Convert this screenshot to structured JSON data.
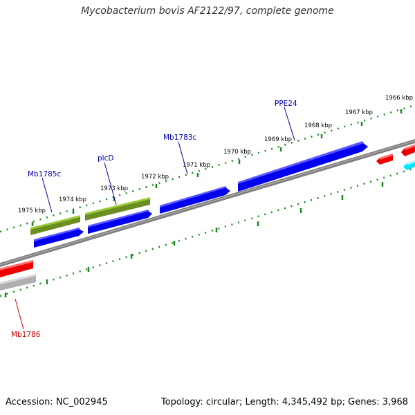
{
  "title": "Mycobacterium bovis AF2122/97, complete genome",
  "footer": {
    "accession": "Accession: NC_002945",
    "summary": "Topology: circular; Length: 4,345,492 bp; Genes: 3,968"
  },
  "kbp_labels": [
    "1966 kbp",
    "1967 kbp",
    "1968 kbp",
    "1969 kbp",
    "1970 kbp",
    "1971 kbp",
    "1972 kbp",
    "1973 kbp",
    "1974 kbp",
    "1975 kbp"
  ],
  "gene_labels": [
    {
      "name": "PPE24",
      "strand": "forward"
    },
    {
      "name": "Mb1783c",
      "strand": "forward"
    },
    {
      "name": "plcD",
      "strand": "forward"
    },
    {
      "name": "Mb1785c",
      "strand": "forward"
    },
    {
      "name": "Mb1786",
      "strand": "reverse"
    }
  ],
  "colors": {
    "forward_label": "#0000aa",
    "reverse_label": "#cc0000",
    "blue_gene": "#0000ee",
    "green_gene": "#6b8e23",
    "red_gene": "#ee0000",
    "grey_gene": "#b0b0b0",
    "cyan_gene": "#00e5ff",
    "backbone": "#808080",
    "ticks": "#1a8a1a"
  }
}
